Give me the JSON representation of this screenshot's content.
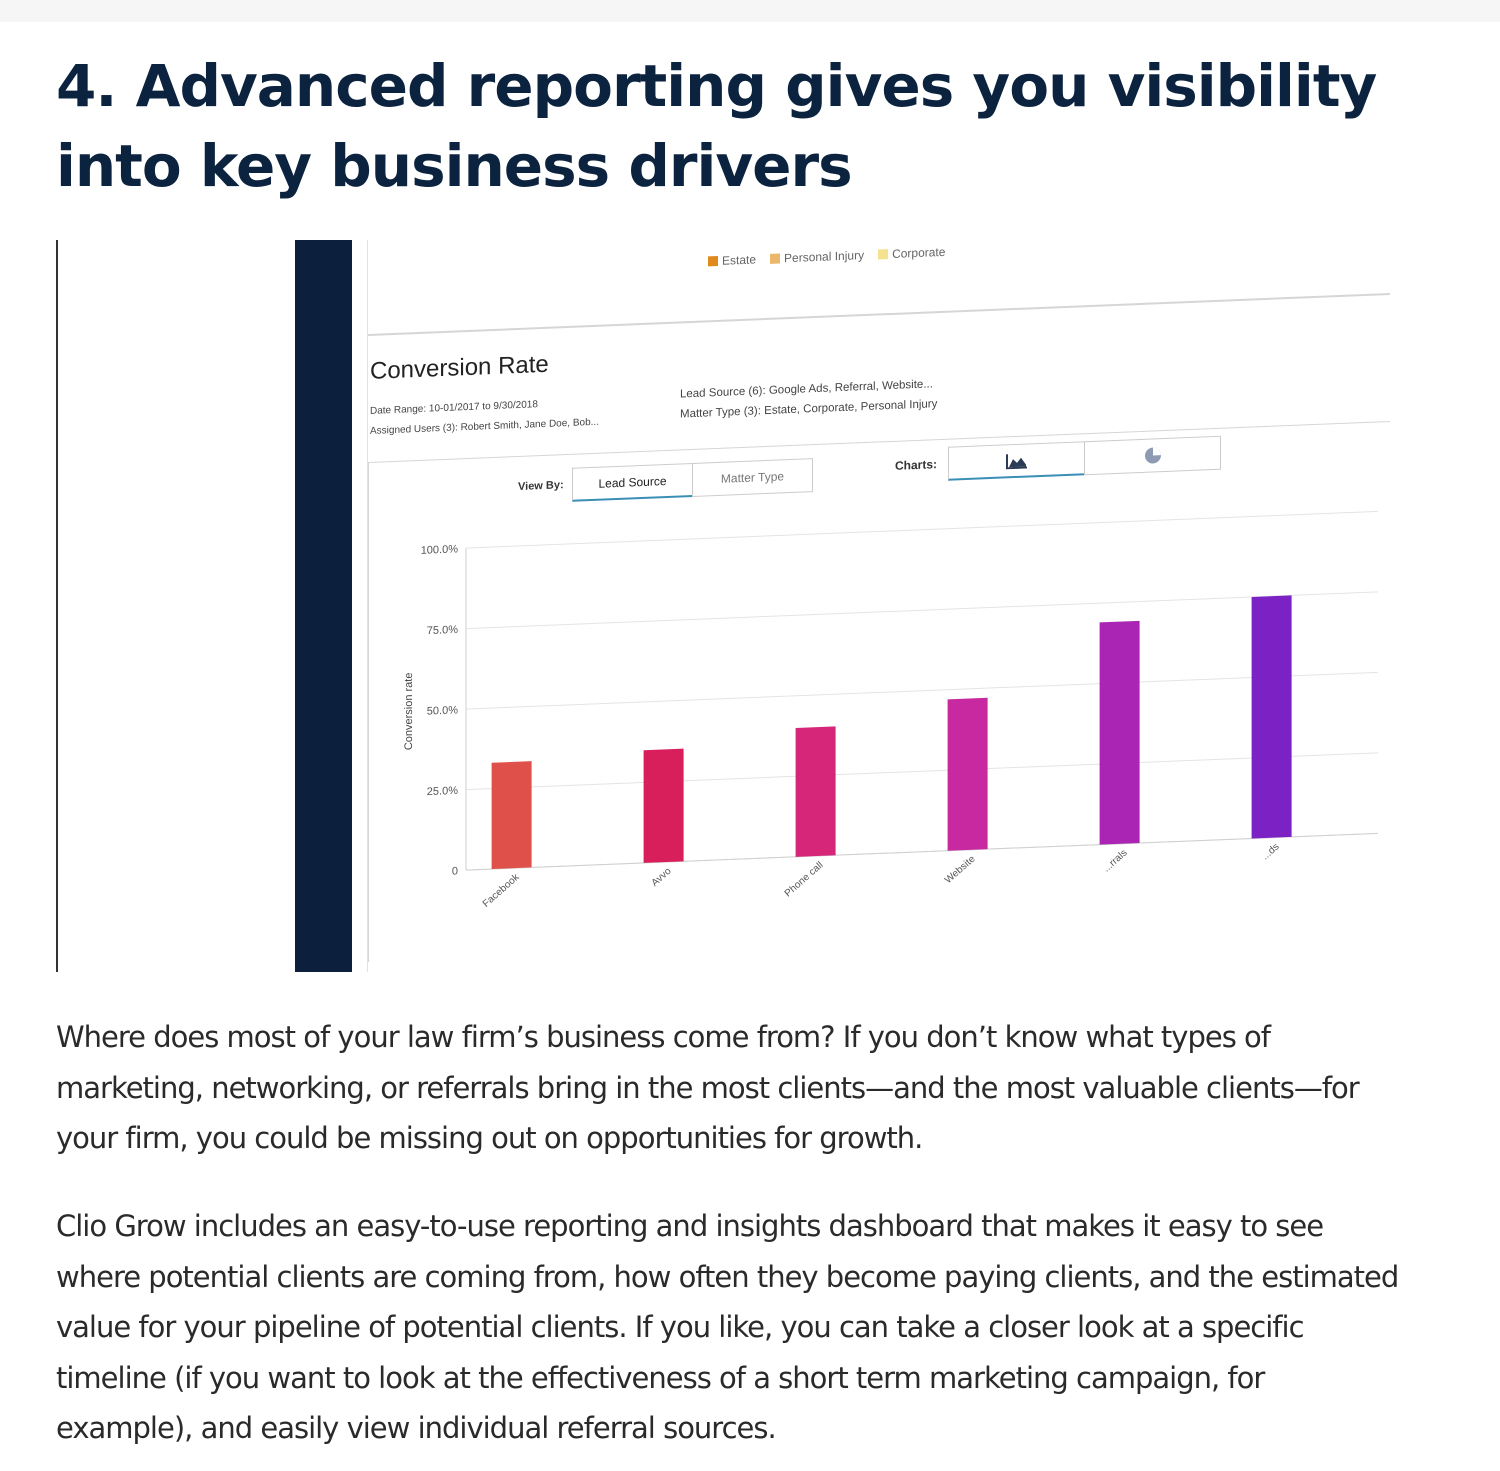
{
  "article": {
    "heading": "4. Advanced reporting gives you visibility into key business drivers",
    "paragraph_1": "Where does most of your law firm’s business come from? If you don’t know what types of marketing, networking, or referrals bring in the most clients—and the most valuable clients—for your firm, you could be missing out on opportunities for growth.",
    "paragraph_2": "Clio Grow includes an easy-to-use reporting and insights dashboard that makes it easy to see where potential clients are coming from, how often they become paying clients, and the estimated value for your pipeline of potential clients. If you like, you can take a closer look at a specific timeline (if you want to look at the effectiveness of a short term marketing campaign, for example), and easily view individual referral sources."
  },
  "report": {
    "legend": [
      {
        "label": "Estate",
        "color": "#e08a1e"
      },
      {
        "label": "Personal Injury",
        "color": "#ebb76a"
      },
      {
        "label": "Corporate",
        "color": "#f5e28f"
      }
    ],
    "title": "Conversion Rate",
    "date_range": "Date Range: 10-01/2017 to 9/30/2018",
    "assigned_users": "Assigned Users (3): Robert Smith, Jane Doe, Bob...",
    "lead_source_filter": "Lead Source (6): Google Ads, Referral, Website...",
    "matter_type_filter": "Matter Type (3): Estate, Corporate, Personal Injury",
    "view_by_label": "View By:",
    "view_by_options": [
      "Lead Source",
      "Matter Type"
    ],
    "view_by_selected": "Lead Source",
    "charts_label": "Charts:",
    "chart_type_icons": [
      "area-chart-icon",
      "pie-chart-icon"
    ]
  },
  "chart_data": {
    "type": "bar",
    "title": "",
    "xlabel": "",
    "ylabel": "Conversion rate",
    "ylim": [
      0,
      100
    ],
    "yticks": [
      0,
      25,
      50,
      75,
      100
    ],
    "ytick_labels": [
      "0",
      "25.0%",
      "50.0%",
      "75.0%",
      "100.0%"
    ],
    "categories": [
      "Facebook",
      "Avvo",
      "Phone call",
      "Website",
      "Referrals",
      "Ads"
    ],
    "visible_category_labels": [
      "Facebook",
      "Avvo",
      "Phone call",
      "Website",
      "...rrals",
      "...ds"
    ],
    "values": [
      33,
      35,
      40,
      47,
      69,
      75
    ],
    "colors": [
      "#e0504a",
      "#d81f5b",
      "#d6267a",
      "#c829a0",
      "#ab25b4",
      "#7c22c4"
    ],
    "grid": true
  }
}
